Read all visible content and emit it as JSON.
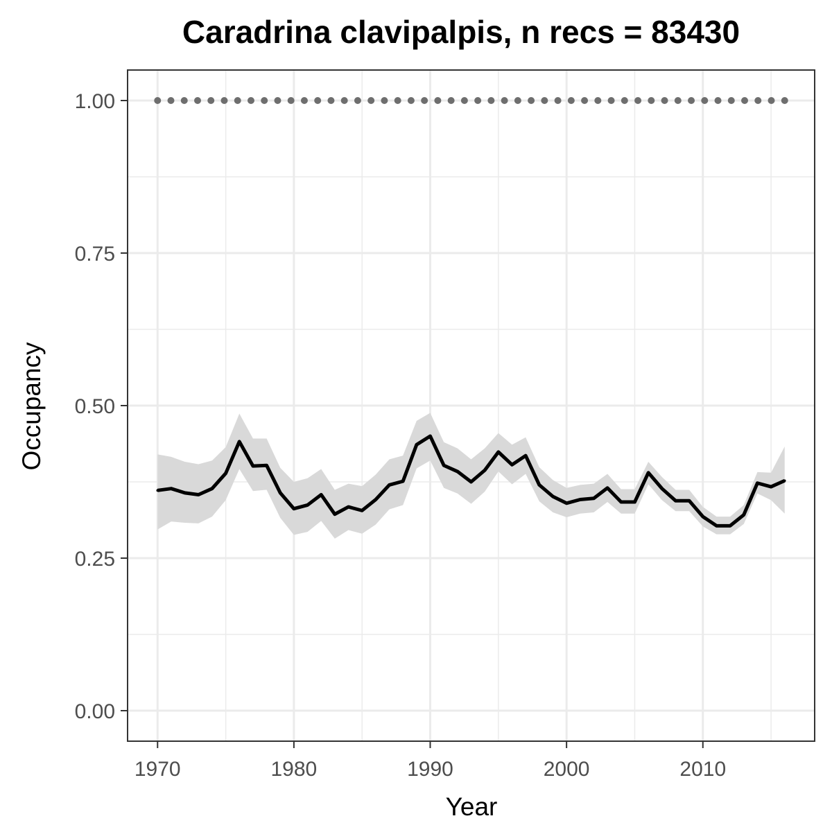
{
  "chart_data": {
    "type": "line",
    "title": "Caradrina clavipalpis, n recs = 83430",
    "xlabel": "Year",
    "ylabel": "Occupancy",
    "xlim": [
      1967.8,
      2018.2
    ],
    "ylim": [
      -0.05,
      1.05
    ],
    "x_ticks": [
      1970,
      1980,
      1990,
      2000,
      2010
    ],
    "x_minor_ticks": [
      1975,
      1985,
      1995,
      2005,
      2015
    ],
    "y_ticks": [
      0.0,
      0.25,
      0.5,
      0.75,
      1.0
    ],
    "y_tick_labels": [
      "0.00",
      "0.25",
      "0.50",
      "0.75",
      "1.00"
    ],
    "y_minor_ticks": [
      0.125,
      0.375,
      0.625,
      0.875
    ],
    "grid": true,
    "colors": {
      "line": "#000000",
      "ribbon": "#d9d9d9",
      "dotted_line": "#6e6e6e",
      "grid": "#ebebeb",
      "panel_border": "#333333",
      "tick_label": "#4d4d4d"
    },
    "x": [
      1970,
      1971,
      1972,
      1973,
      1974,
      1975,
      1976,
      1977,
      1978,
      1979,
      1980,
      1981,
      1982,
      1983,
      1984,
      1985,
      1986,
      1987,
      1988,
      1989,
      1990,
      1991,
      1992,
      1993,
      1994,
      1995,
      1996,
      1997,
      1998,
      1999,
      2000,
      2001,
      2002,
      2003,
      2004,
      2005,
      2006,
      2007,
      2008,
      2009,
      2010,
      2011,
      2012,
      2013,
      2014,
      2015,
      2016
    ],
    "series": [
      {
        "values": [
          0.361,
          0.364,
          0.357,
          0.354,
          0.364,
          0.389,
          0.441,
          0.401,
          0.402,
          0.357,
          0.331,
          0.337,
          0.354,
          0.322,
          0.334,
          0.328,
          0.346,
          0.37,
          0.376,
          0.436,
          0.45,
          0.402,
          0.392,
          0.375,
          0.394,
          0.424,
          0.403,
          0.418,
          0.37,
          0.351,
          0.34,
          0.346,
          0.348,
          0.365,
          0.342,
          0.342,
          0.39,
          0.364,
          0.344,
          0.344,
          0.318,
          0.303,
          0.303,
          0.321,
          0.373,
          0.367,
          0.377
        ],
        "upper": [
          0.42,
          0.416,
          0.408,
          0.404,
          0.41,
          0.432,
          0.487,
          0.446,
          0.446,
          0.398,
          0.375,
          0.381,
          0.396,
          0.362,
          0.372,
          0.368,
          0.387,
          0.412,
          0.418,
          0.475,
          0.488,
          0.44,
          0.43,
          0.412,
          0.43,
          0.455,
          0.436,
          0.448,
          0.399,
          0.378,
          0.365,
          0.37,
          0.372,
          0.388,
          0.363,
          0.363,
          0.408,
          0.383,
          0.362,
          0.362,
          0.334,
          0.318,
          0.318,
          0.337,
          0.391,
          0.39,
          0.433
        ],
        "lower": [
          0.297,
          0.31,
          0.308,
          0.307,
          0.318,
          0.345,
          0.396,
          0.36,
          0.362,
          0.316,
          0.288,
          0.293,
          0.311,
          0.282,
          0.296,
          0.29,
          0.305,
          0.33,
          0.337,
          0.397,
          0.41,
          0.365,
          0.356,
          0.339,
          0.359,
          0.392,
          0.371,
          0.388,
          0.343,
          0.325,
          0.317,
          0.323,
          0.325,
          0.342,
          0.323,
          0.323,
          0.371,
          0.345,
          0.327,
          0.327,
          0.302,
          0.289,
          0.289,
          0.306,
          0.356,
          0.345,
          0.323
        ]
      },
      {
        "style": "dotted",
        "values": [
          1,
          1,
          1,
          1,
          1,
          1,
          1,
          1,
          1,
          1,
          1,
          1,
          1,
          1,
          1,
          1,
          1,
          1,
          1,
          1,
          1,
          1,
          1,
          1,
          1,
          1,
          1,
          1,
          1,
          1,
          1,
          1,
          1,
          1,
          1,
          1,
          1,
          1,
          1,
          1,
          1,
          1,
          1,
          1,
          1,
          1,
          1
        ]
      }
    ]
  }
}
